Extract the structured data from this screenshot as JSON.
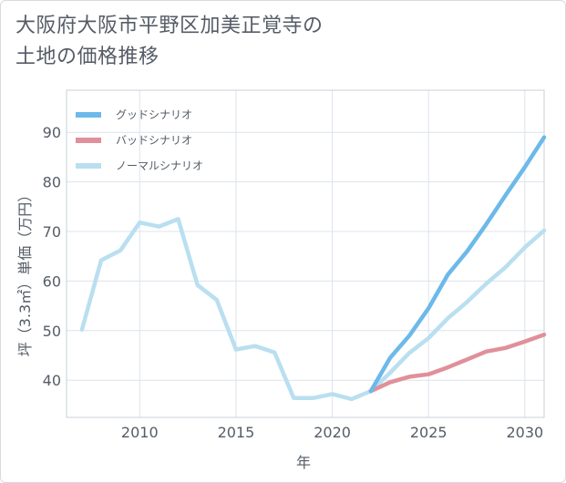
{
  "title_line1": "大阪府大阪市平野区加美正覚寺の",
  "title_line2": "土地の価格推移",
  "chart_data": {
    "type": "line",
    "xlabel": "年",
    "ylabel": "坪（3.3㎡）単価（万円）",
    "xlim": [
      2006.2,
      2031
    ],
    "ylim": [
      32.5,
      98.5
    ],
    "xticks": [
      2010,
      2015,
      2020,
      2025,
      2030
    ],
    "yticks": [
      40,
      50,
      60,
      70,
      80,
      90
    ],
    "grid": true,
    "legend_position": "top-left",
    "series": [
      {
        "name": "グッドシナリオ",
        "color": "#6cb9ea",
        "x": [
          2022,
          2023,
          2024,
          2025,
          2026,
          2027,
          2028,
          2029,
          2030,
          2031
        ],
        "y": [
          37.8,
          44.5,
          49.0,
          54.5,
          61.3,
          66.0,
          71.5,
          77.3,
          83.0,
          89.0
        ]
      },
      {
        "name": "バッドシナリオ",
        "color": "#e0909a",
        "x": [
          2022,
          2023,
          2024,
          2025,
          2026,
          2027,
          2028,
          2029,
          2030,
          2031
        ],
        "y": [
          37.8,
          39.6,
          40.7,
          41.2,
          42.6,
          44.2,
          45.8,
          46.5,
          47.8,
          49.2
        ]
      },
      {
        "name": "ノーマルシナリオ",
        "color": "#b9dff0",
        "x": [
          2007,
          2008,
          2009,
          2010,
          2011,
          2012,
          2013,
          2014,
          2015,
          2016,
          2017,
          2018,
          2019,
          2020,
          2021,
          2022,
          2023,
          2024,
          2025,
          2026,
          2027,
          2028,
          2029,
          2030,
          2031
        ],
        "y": [
          50.2,
          64.2,
          66.2,
          71.8,
          71.0,
          72.5,
          59.2,
          56.2,
          46.2,
          46.9,
          45.6,
          36.4,
          36.4,
          37.2,
          36.2,
          37.8,
          41.5,
          45.5,
          48.5,
          52.5,
          55.8,
          59.5,
          62.8,
          66.8,
          70.2
        ]
      }
    ]
  }
}
